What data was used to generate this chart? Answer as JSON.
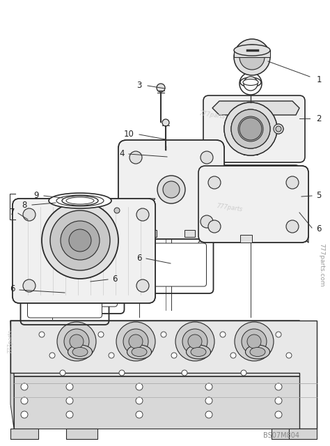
{
  "bg_color": "#ffffff",
  "line_color": "#333333",
  "part_edge": "#2a2a2a",
  "part_fill": "#f0f0f0",
  "mid_fill": "#e0e0e0",
  "dark_fill": "#c8c8c8",
  "white": "#ffffff",
  "watermark_color": "#cccccc",
  "ref_code": "BS07M804",
  "watermark_rotated": "777parts.com",
  "callout_fontsize": 8.5,
  "ref_fontsize": 7,
  "wm_fontsize": 6
}
